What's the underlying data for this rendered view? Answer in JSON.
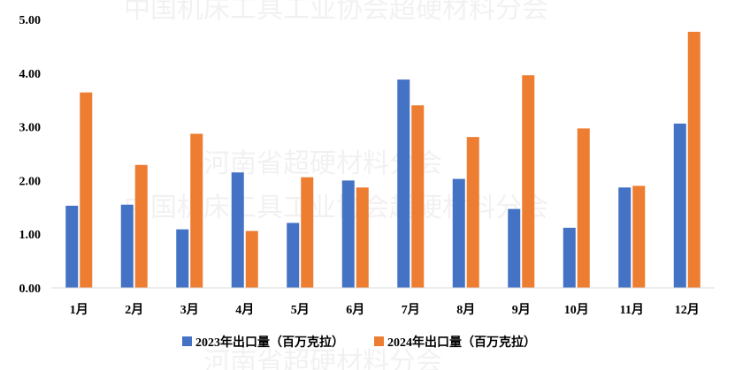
{
  "colors": {
    "series_2023": "#4472C4",
    "series_2024": "#ED7D31",
    "axis": "#D9D9D9"
  },
  "watermarks": {
    "line1": "中国机床工具工业协会超硬材料分会",
    "line2": "河南省超硬材料分会",
    "line3": "中国机床工具工业协会超硬材料分会",
    "line4": "河南省超硬材料分会"
  },
  "chart_data": {
    "type": "bar",
    "categories": [
      "1月",
      "2月",
      "3月",
      "4月",
      "5月",
      "6月",
      "7月",
      "8月",
      "9月",
      "10月",
      "11月",
      "12月"
    ],
    "series": [
      {
        "name": "2023年出口量（百万克拉）",
        "values": [
          1.53,
          1.55,
          1.09,
          2.15,
          1.21,
          2.0,
          3.88,
          2.03,
          1.47,
          1.12,
          1.87,
          3.06
        ]
      },
      {
        "name": "2024年出口量（百万克拉）",
        "values": [
          3.64,
          2.29,
          2.87,
          1.06,
          2.06,
          1.87,
          3.4,
          2.81,
          3.96,
          2.97,
          1.9,
          4.77
        ]
      }
    ],
    "yticks": [
      "0.00",
      "1.00",
      "2.00",
      "3.00",
      "4.00",
      "5.00"
    ],
    "ylim": [
      0,
      5
    ],
    "grid": false,
    "legend_position": "bottom"
  }
}
